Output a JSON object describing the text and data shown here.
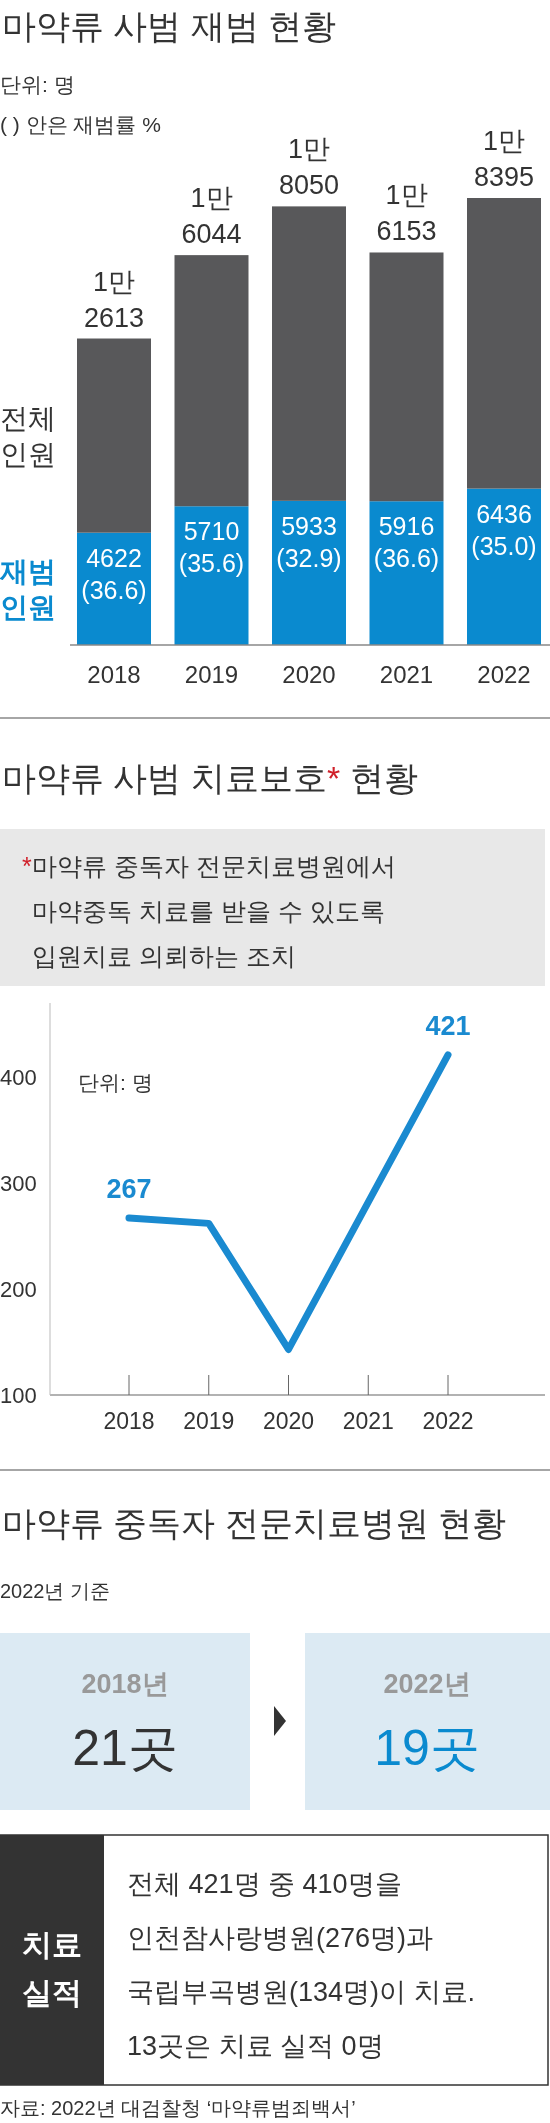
{
  "chart_data": [
    {
      "type": "bar",
      "title": "마약류 사범 재범 현황",
      "annotations": [
        "단위: 명",
        "( ) 안은 재범률 %"
      ],
      "categories": [
        "2018",
        "2019",
        "2020",
        "2021",
        "2022"
      ],
      "stacked": true,
      "legend": "left",
      "series": [
        {
          "name": "재범 인원",
          "color": "#0a8acf",
          "values": [
            4622,
            5710,
            5933,
            5916,
            6436
          ],
          "value_labels": [
            "4622 (36.6)",
            "5710 (35.6)",
            "5933 (32.9)",
            "5916 (36.6)",
            "6436 (35.0)"
          ]
        },
        {
          "name": "전체 인원",
          "color": "#58585a",
          "values": [
            7991,
            10334,
            12117,
            10237,
            11959
          ]
        }
      ],
      "totals": [
        "1만 2613",
        "1만 6044",
        "1만 8050",
        "1만 6153",
        "1만 8395"
      ]
    },
    {
      "type": "line",
      "title": "마약류 사범 치료보호* 현황",
      "subtitle": "*마약류 중독자 전문치료병원에서\n마약중독 치료를 받을 수 있도록\n입원치료 의뢰하는 조치",
      "annotations": [
        "단위: 명"
      ],
      "categories": [
        "2018",
        "2019",
        "2020",
        "2021",
        "2022"
      ],
      "series": [
        {
          "color": "#1a8ad0",
          "values": [
            267,
            262,
            143,
            282,
            421
          ],
          "value_labels": [
            "267",
            null,
            null,
            null,
            "421"
          ]
        }
      ],
      "ylim": [
        100,
        470
      ],
      "yticks": [
        100,
        200,
        300,
        400
      ],
      "grid": false,
      "legend": false,
      "marker": "none",
      "line_style": "solid"
    },
    {
      "type": "other",
      "title": "마약류 중독자 전문치료병원 현황",
      "subtitle": "2022년 기준",
      "annotations": [
        "2018년",
        "21곳",
        "2022년",
        "19곳",
        "치료 실적",
        "전체 421명 중 410명을\n인천참사랑병원(276명)과\n국립부곡병원(134명)이 치료.\n13곳은 치료 실적 0명",
        "자료: 2022년 대검찰청 ‘마약류범죄백서’"
      ]
    }
  ]
}
